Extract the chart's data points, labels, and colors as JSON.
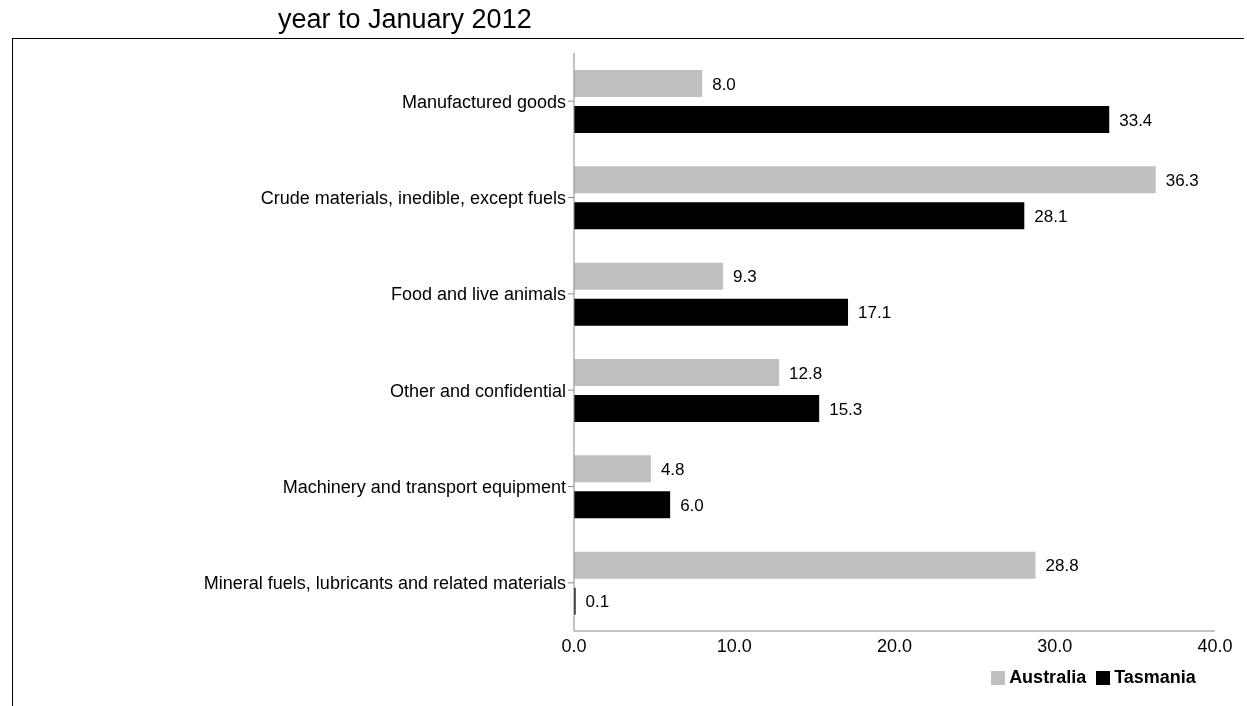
{
  "chart_data": {
    "type": "bar",
    "orientation": "horizontal",
    "title": "year to January 2012",
    "categories": [
      "Manufactured goods",
      "Crude materials, inedible, except fuels",
      "Food and live animals",
      "Other and confidential",
      "Machinery and transport equipment",
      "Mineral fuels, lubricants and related materials"
    ],
    "series": [
      {
        "name": "Australia",
        "color": "#c0c0c0",
        "values": [
          8.0,
          36.3,
          9.3,
          12.8,
          4.8,
          28.8
        ],
        "value_labels": [
          "8.0",
          "36.3",
          "9.3",
          "12.8",
          "4.8",
          "28.8"
        ]
      },
      {
        "name": "Tasmania",
        "color": "#000000",
        "values": [
          33.4,
          28.1,
          17.1,
          15.3,
          6.0,
          0.1
        ],
        "value_labels": [
          "33.4",
          "28.1",
          "17.1",
          "15.3",
          "6.0",
          "0.1"
        ]
      }
    ],
    "xlim": [
      0,
      40
    ],
    "xticks": [
      {
        "value": 0,
        "label": "0.0"
      },
      {
        "value": 10,
        "label": "10.0"
      },
      {
        "value": 20,
        "label": "20.0"
      },
      {
        "value": 30,
        "label": "30.0"
      },
      {
        "value": 40,
        "label": "40.0"
      }
    ],
    "legend": "bottom",
    "grid": false
  }
}
